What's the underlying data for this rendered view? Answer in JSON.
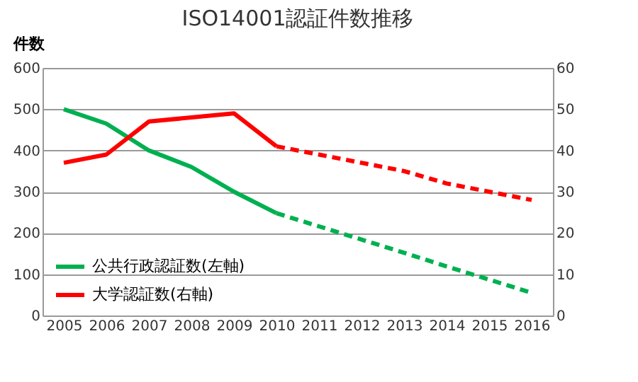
{
  "chart_data": {
    "type": "line",
    "title": "ISO14001認証件数推移",
    "ylabel": "件数",
    "categories": [
      "2005",
      "2006",
      "2007",
      "2008",
      "2009",
      "2010",
      "2011",
      "2012",
      "2013",
      "2014",
      "2015",
      "2016"
    ],
    "series": [
      {
        "name": "公共行政認証数(左軸)",
        "color": "#00b050",
        "line_style": "solid",
        "values": [
          500,
          465,
          400,
          360,
          300,
          248,
          null,
          null,
          null,
          null,
          null,
          null
        ]
      },
      {
        "color": "#00b050",
        "line_style": "dashed",
        "values": [
          null,
          null,
          null,
          null,
          null,
          248,
          216,
          184,
          152,
          119,
          87,
          55
        ]
      },
      {
        "name": "大学認証数(右軸)",
        "color": "#ff0000",
        "line_style": "solid",
        "axis": "y2",
        "values": [
          37,
          39,
          47,
          48,
          49,
          41,
          null,
          null,
          null,
          null,
          null,
          null
        ]
      },
      {
        "color": "#ff0000",
        "line_style": "dashed",
        "axis": "y2",
        "values": [
          null,
          null,
          null,
          null,
          null,
          41,
          39,
          37,
          35,
          32,
          30,
          28
        ]
      }
    ],
    "ylim": [
      0,
      600
    ],
    "yticks": [
      0,
      100,
      200,
      300,
      400,
      500,
      600
    ],
    "y2lim": [
      0,
      60
    ],
    "y2ticks": [
      0,
      10,
      20,
      30,
      40,
      50,
      60
    ],
    "grid": "y",
    "legend": "bottom left",
    "marker": "none"
  }
}
